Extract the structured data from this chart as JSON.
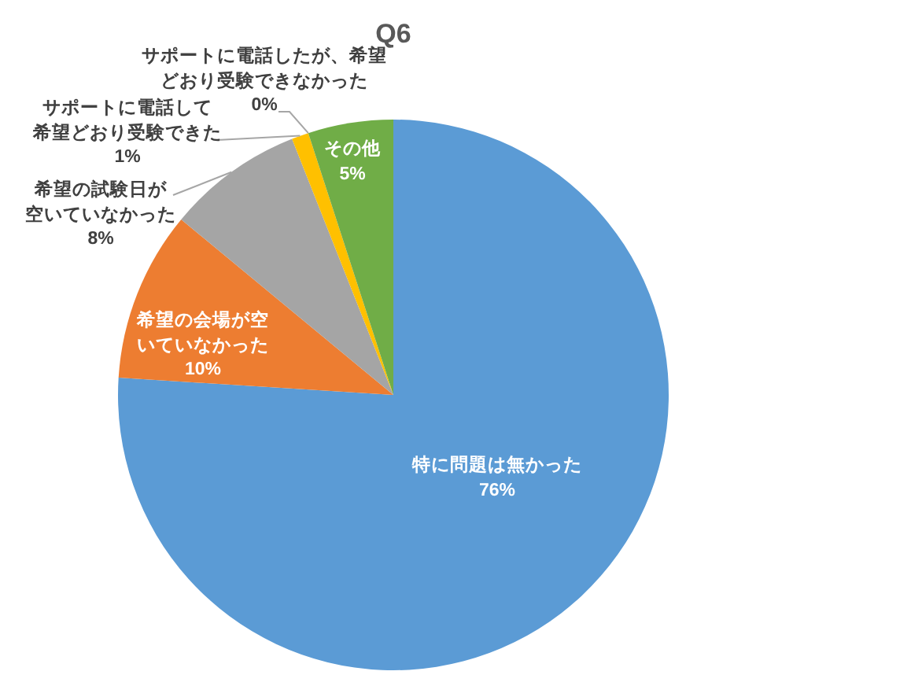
{
  "chart_data": {
    "type": "pie",
    "title": "Q6",
    "categories": [
      "特に問題は無かった",
      "希望の会場が空いていなかった",
      "希望の試験日が空いていなかった",
      "サポートに電話して希望どおり受験できた",
      "サポートに電話したが、希望どおり受験できなかった",
      "その他"
    ],
    "values": [
      76,
      10,
      8,
      1,
      0,
      5
    ],
    "colors": [
      "#5b9bd5",
      "#ed7d31",
      "#a5a5a5",
      "#ffc000",
      "#4472c4",
      "#70ad47"
    ],
    "value_labels": [
      "76%",
      "10%",
      "8%",
      "1%",
      "0%",
      "5%"
    ]
  }
}
